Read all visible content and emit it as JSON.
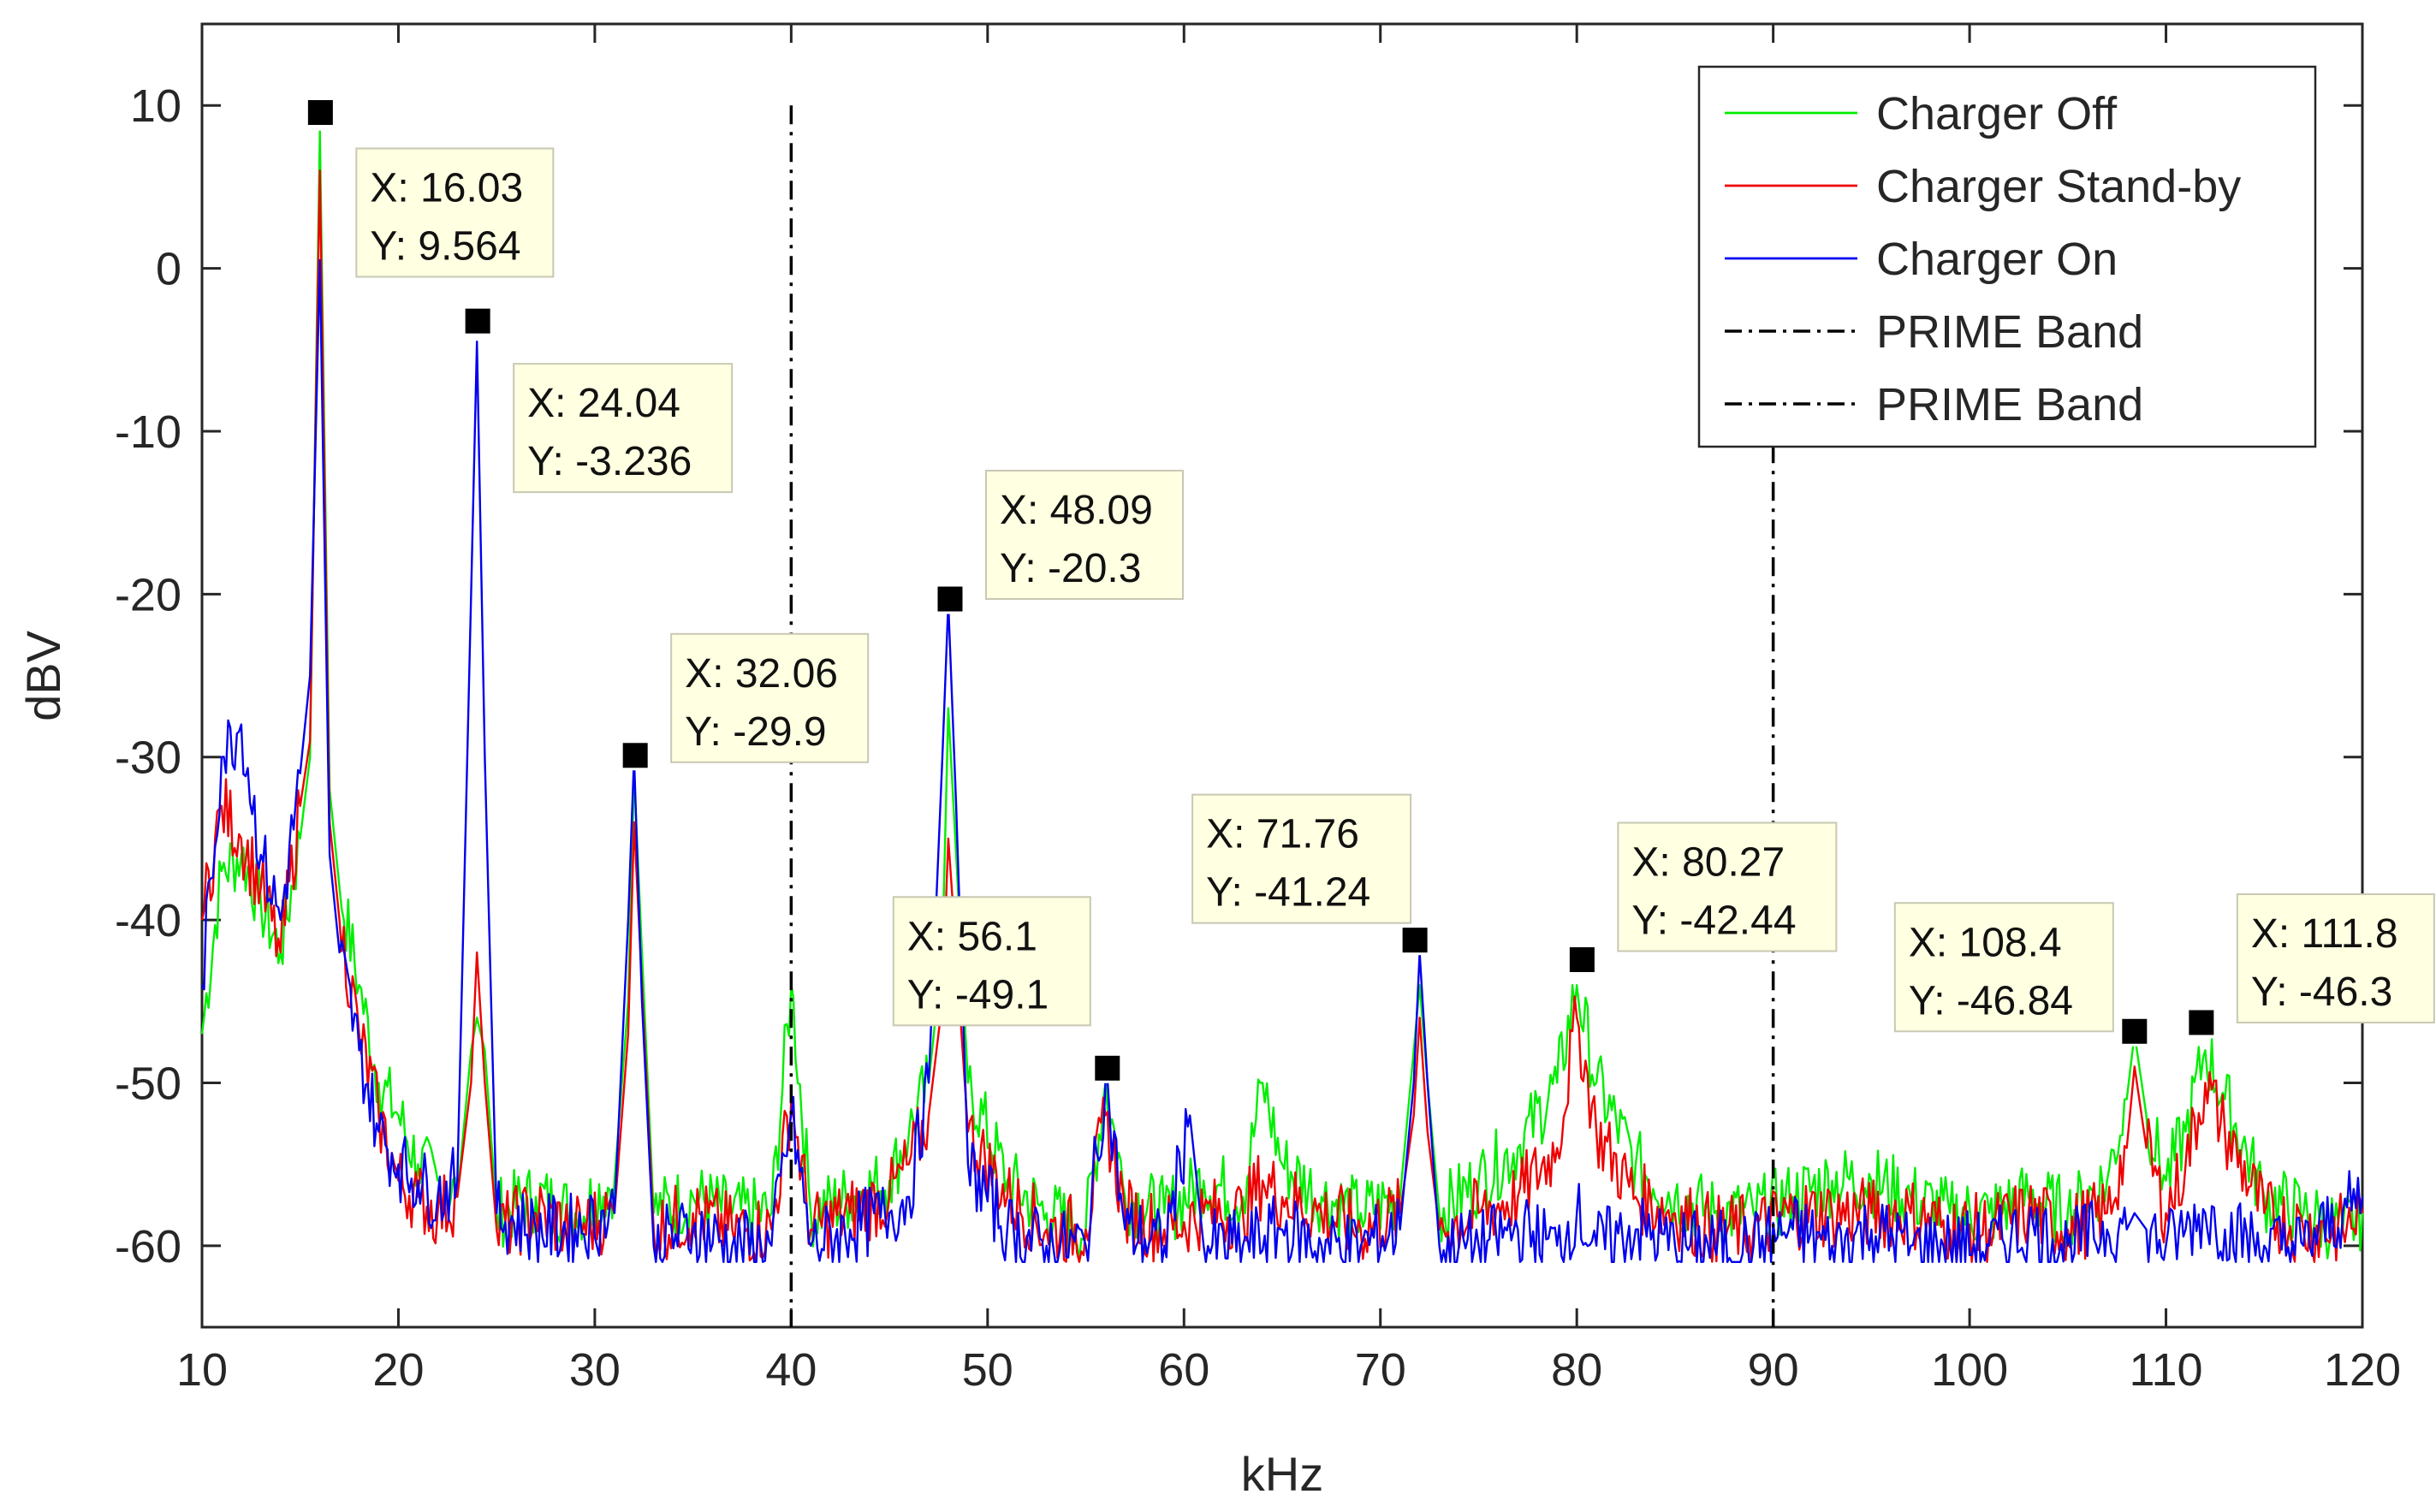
{
  "chart_data": {
    "type": "line",
    "title": "",
    "xlabel": "kHz",
    "ylabel": "dBV",
    "xlim": [
      10,
      120
    ],
    "ylim": [
      -65,
      15
    ],
    "xticks": [
      "10",
      "20",
      "30",
      "40",
      "50",
      "60",
      "70",
      "80",
      "90",
      "100",
      "110",
      "120"
    ],
    "yticks": [
      "10",
      "0",
      "-10",
      "-20",
      "-30",
      "-40",
      "-50",
      "-60"
    ],
    "xtick_values": [
      10,
      20,
      30,
      40,
      50,
      60,
      70,
      80,
      90,
      100,
      110,
      120
    ],
    "ytick_values": [
      10,
      0,
      -10,
      -20,
      -30,
      -40,
      -50,
      -60
    ],
    "grid": false,
    "legend_position": "top-right",
    "colors": {
      "charger_off": "#00ee00",
      "charger_standby": "#ee0000",
      "charger_on": "#0000ee",
      "prime_band": "#000000",
      "tooltip_bg": "#ffffe1",
      "marker": "#000000"
    },
    "series": [
      {
        "name": "Charger Off",
        "key": "charger_off",
        "x": [
          10,
          11,
          12,
          13,
          14,
          15,
          15.5,
          16,
          16.5,
          17,
          18,
          19,
          20,
          21,
          22,
          23,
          23.7,
          24,
          24.4,
          25,
          27,
          29,
          31,
          31.7,
          32,
          32.4,
          33,
          35,
          37,
          39,
          40,
          41,
          43,
          45,
          46,
          47,
          47.7,
          48,
          48.4,
          49,
          51,
          53,
          55,
          56,
          57,
          59,
          61,
          63,
          64,
          65,
          67,
          69,
          71,
          71.7,
          72,
          72.4,
          73,
          75,
          77,
          79,
          80,
          81,
          83,
          85,
          87,
          89,
          91,
          93,
          95,
          97,
          99,
          101,
          103,
          105,
          107,
          108,
          108.4,
          109,
          110,
          111,
          112,
          113,
          115,
          117,
          119,
          120
        ],
        "values": [
          -47,
          -37,
          -36,
          -39,
          -42,
          -35,
          -30,
          8.4,
          -32,
          -38,
          -44,
          -50,
          -52,
          -55,
          -56,
          -57,
          -48,
          -46,
          -48,
          -58,
          -57,
          -58,
          -56,
          -45,
          -31,
          -42,
          -58,
          -57,
          -58,
          -58,
          -44,
          -58,
          -57,
          -56,
          -53,
          -50,
          -42,
          -27,
          -36,
          -50,
          -56,
          -58,
          -59,
          -50,
          -57,
          -58,
          -56,
          -57,
          -50,
          -55,
          -57,
          -58,
          -57,
          -48,
          -44,
          -50,
          -58,
          -56,
          -54,
          -50,
          -44,
          -50,
          -55,
          -57,
          -58,
          -58,
          -57,
          -56,
          -56,
          -57,
          -58,
          -58,
          -57,
          -58,
          -56,
          -51,
          -47,
          -52,
          -56,
          -53,
          -48,
          -51,
          -57,
          -58,
          -59,
          -58
        ]
      },
      {
        "name": "Charger Stand-by",
        "key": "charger_standby",
        "x": [
          10,
          11,
          12,
          13,
          14,
          15,
          15.5,
          16,
          16.5,
          17,
          18,
          19,
          20,
          21,
          22,
          23,
          23.7,
          24,
          24.4,
          25,
          27,
          29,
          31,
          31.7,
          32,
          32.4,
          33,
          35,
          37,
          39,
          40,
          41,
          43,
          45,
          46,
          47,
          47.7,
          48,
          48.4,
          49,
          51,
          53,
          55,
          56,
          57,
          59,
          61,
          63,
          64,
          65,
          67,
          69,
          71,
          71.7,
          72,
          72.4,
          73,
          75,
          77,
          79,
          80,
          81,
          83,
          85,
          87,
          89,
          91,
          93,
          95,
          97,
          99,
          101,
          103,
          105,
          107,
          108,
          108.4,
          109,
          110,
          111,
          112,
          113,
          115,
          117,
          119,
          120
        ],
        "values": [
          -40,
          -33,
          -35,
          -38,
          -42,
          -33,
          -29,
          6,
          -34,
          -40,
          -47,
          -52,
          -56,
          -57,
          -58,
          -57,
          -50,
          -42,
          -50,
          -59,
          -58,
          -59,
          -58,
          -47,
          -34,
          -44,
          -59,
          -58,
          -59,
          -59,
          -51,
          -59,
          -58,
          -57,
          -55,
          -52,
          -45,
          -35,
          -42,
          -53,
          -57,
          -59,
          -59,
          -52,
          -58,
          -59,
          -58,
          -58,
          -56,
          -57,
          -58,
          -59,
          -58,
          -52,
          -46,
          -53,
          -59,
          -58,
          -57,
          -54,
          -46,
          -53,
          -57,
          -58,
          -59,
          -59,
          -58,
          -58,
          -58,
          -58,
          -59,
          -59,
          -58,
          -59,
          -58,
          -54,
          -49,
          -54,
          -58,
          -55,
          -50,
          -53,
          -58,
          -59,
          -59,
          -58
        ]
      },
      {
        "name": "Charger On",
        "key": "charger_on",
        "x": [
          10,
          11,
          12,
          13,
          14,
          15,
          15.5,
          16,
          16.5,
          17,
          18,
          19,
          20,
          21,
          22,
          23,
          23.7,
          24,
          24.4,
          25,
          27,
          29,
          31,
          31.7,
          32,
          32.4,
          33,
          35,
          37,
          39,
          40,
          41,
          43,
          45,
          46,
          47,
          47.7,
          48,
          48.4,
          49,
          51,
          53,
          55,
          56,
          57,
          59,
          60.3,
          61,
          63,
          65,
          67,
          69,
          71,
          71.7,
          72,
          72.4,
          73,
          75,
          77,
          79,
          80,
          81,
          83,
          85,
          87,
          89,
          91,
          93,
          95,
          97,
          99,
          101,
          103,
          105,
          107,
          108,
          108.4,
          109,
          110,
          111,
          112,
          113,
          115,
          117,
          119,
          120
        ],
        "values": [
          -44,
          -30,
          -28,
          -36,
          -40,
          -31,
          -25,
          0.5,
          -36,
          -42,
          -48,
          -53,
          -55,
          -56,
          -57,
          -56,
          -20,
          -4.5,
          -30,
          -58,
          -59,
          -59,
          -58,
          -40,
          -30,
          -45,
          -60,
          -59,
          -60,
          -60,
          -52,
          -60,
          -59,
          -58,
          -57,
          -50,
          -30,
          -20.5,
          -33,
          -55,
          -59,
          -60,
          -60,
          -50,
          -59,
          -60,
          -52,
          -60,
          -60,
          -59,
          -60,
          -60,
          -59,
          -50,
          -42,
          -50,
          -60,
          -60,
          -59,
          -60,
          -58,
          -60,
          -59,
          -60,
          -60,
          -60,
          -59,
          -60,
          -59,
          -60,
          -60,
          -60,
          -59,
          -60,
          -59,
          -59,
          -58,
          -59,
          -60,
          -59,
          -58,
          -59,
          -60,
          -60,
          -58,
          -57
        ]
      }
    ],
    "prime_band": {
      "name": "PRIME Band",
      "x_values": [
        40,
        90
      ],
      "y_range": [
        -65,
        10
      ]
    },
    "legend": [
      {
        "label": "Charger Off",
        "key": "charger_off",
        "style": "solid"
      },
      {
        "label": "Charger Stand-by",
        "key": "charger_standby",
        "style": "solid"
      },
      {
        "label": "Charger On",
        "key": "charger_on",
        "style": "solid"
      },
      {
        "label": "PRIME Band",
        "key": "prime_band",
        "style": "dashdot"
      },
      {
        "label": "PRIME Band",
        "key": "prime_band",
        "style": "dashdot"
      }
    ],
    "datatips": [
      {
        "x": 16.03,
        "y": 9.564,
        "label_x": "X: 16.03",
        "label_y": "Y: 9.564"
      },
      {
        "x": 24.04,
        "y": -3.236,
        "label_x": "X: 24.04",
        "label_y": "Y: -3.236"
      },
      {
        "x": 32.06,
        "y": -29.9,
        "label_x": "X: 32.06",
        "label_y": "Y: -29.9"
      },
      {
        "x": 48.09,
        "y": -20.3,
        "label_x": "X: 48.09",
        "label_y": "Y: -20.3"
      },
      {
        "x": 56.1,
        "y": -49.1,
        "label_x": "X: 56.1",
        "label_y": "Y: -49.1"
      },
      {
        "x": 71.76,
        "y": -41.24,
        "label_x": "X: 71.76",
        "label_y": "Y: -41.24"
      },
      {
        "x": 80.27,
        "y": -42.44,
        "label_x": "X: 80.27",
        "label_y": "Y: -42.44"
      },
      {
        "x": 108.4,
        "y": -46.84,
        "label_x": "X: 108.4",
        "label_y": "Y: -46.84"
      },
      {
        "x": 111.8,
        "y": -46.3,
        "label_x": "X: 111.8",
        "label_y": "Y: -46.3"
      }
    ]
  }
}
